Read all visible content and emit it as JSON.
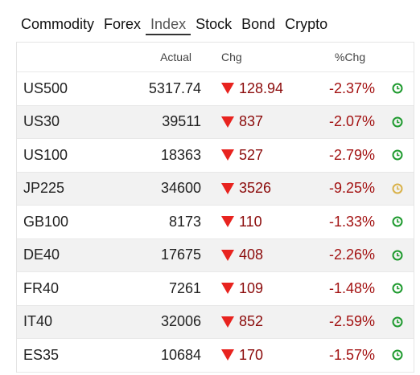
{
  "tabs": [
    "Commodity",
    "Forex",
    "Index",
    "Stock",
    "Bond",
    "Crypto"
  ],
  "active_tab": 2,
  "columns": [
    "Actual",
    "Chg",
    "%Chg"
  ],
  "rows": [
    {
      "name": "US500",
      "actual": "5317.74",
      "chg": "128.94",
      "pct": "-2.37%",
      "clock_color": "#1e9a2e"
    },
    {
      "name": "US30",
      "actual": "39511",
      "chg": "837",
      "pct": "-2.07%",
      "clock_color": "#1e9a2e"
    },
    {
      "name": "US100",
      "actual": "18363",
      "chg": "527",
      "pct": "-2.79%",
      "clock_color": "#1e9a2e"
    },
    {
      "name": "JP225",
      "actual": "34600",
      "chg": "3526",
      "pct": "-9.25%",
      "clock_color": "#d9b24a"
    },
    {
      "name": "GB100",
      "actual": "8173",
      "chg": "110",
      "pct": "-1.33%",
      "clock_color": "#1e9a2e"
    },
    {
      "name": "DE40",
      "actual": "17675",
      "chg": "408",
      "pct": "-2.26%",
      "clock_color": "#1e9a2e"
    },
    {
      "name": "FR40",
      "actual": "7261",
      "chg": "109",
      "pct": "-1.48%",
      "clock_color": "#1e9a2e"
    },
    {
      "name": "IT40",
      "actual": "32006",
      "chg": "852",
      "pct": "-2.59%",
      "clock_color": "#1e9a2e"
    },
    {
      "name": "ES35",
      "actual": "10684",
      "chg": "170",
      "pct": "-1.57%",
      "clock_color": "#1e9a2e"
    }
  ]
}
